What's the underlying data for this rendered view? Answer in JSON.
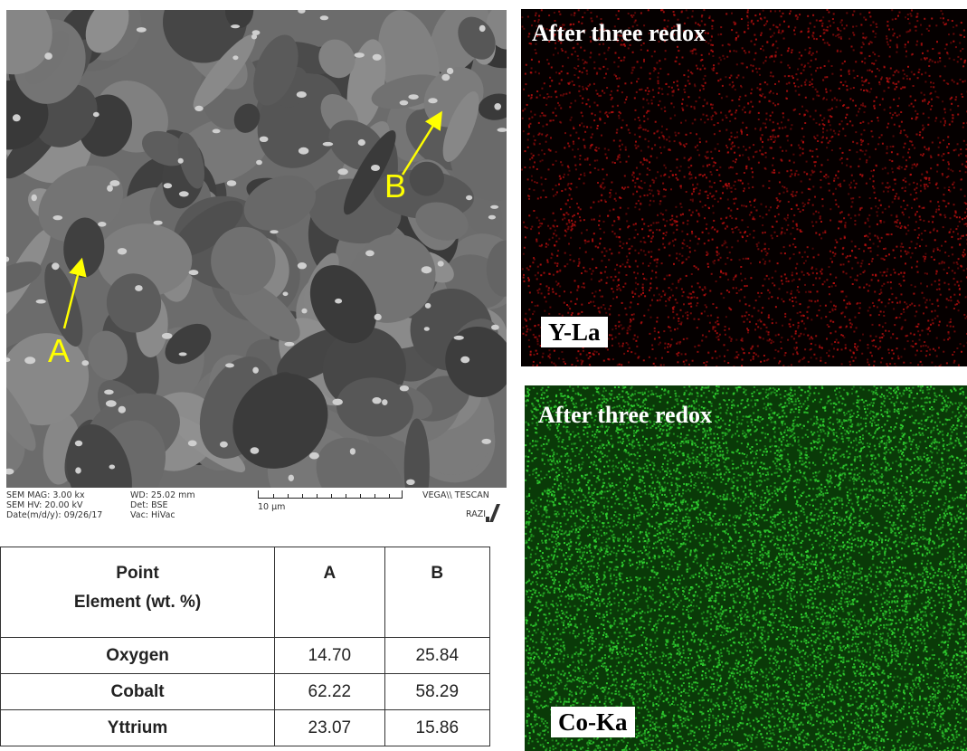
{
  "sem_image": {
    "markers": [
      {
        "label": "A",
        "color": "#ffff00"
      },
      {
        "label": "B",
        "color": "#ffff00"
      }
    ],
    "info": {
      "mag": "SEM MAG: 3.00 kx",
      "hv": "SEM HV: 20.00 kV",
      "date": "Date(m/d/y): 09/26/17",
      "wd": "WD: 25.02 mm",
      "det": "Det: BSE",
      "vac": "Vac: HiVac",
      "scale": "10 µm",
      "brand": "VEGA\\\\ TESCAN",
      "lab": "RAZI"
    }
  },
  "maps": [
    {
      "title": "After three redox",
      "label": "Y-La",
      "color": "#c01010"
    },
    {
      "title": "After three redox",
      "label": "Co-Ka",
      "color": "#30d030"
    }
  ],
  "table": {
    "header": {
      "line1": "Point",
      "line2": "Element (wt. %)",
      "col_a": "A",
      "col_b": "B"
    },
    "rows": [
      {
        "element": "Oxygen",
        "a": "14.70",
        "b": "25.84"
      },
      {
        "element": "Cobalt",
        "a": "62.22",
        "b": "58.29"
      },
      {
        "element": "Yttrium",
        "a": "23.07",
        "b": "15.86"
      }
    ]
  }
}
